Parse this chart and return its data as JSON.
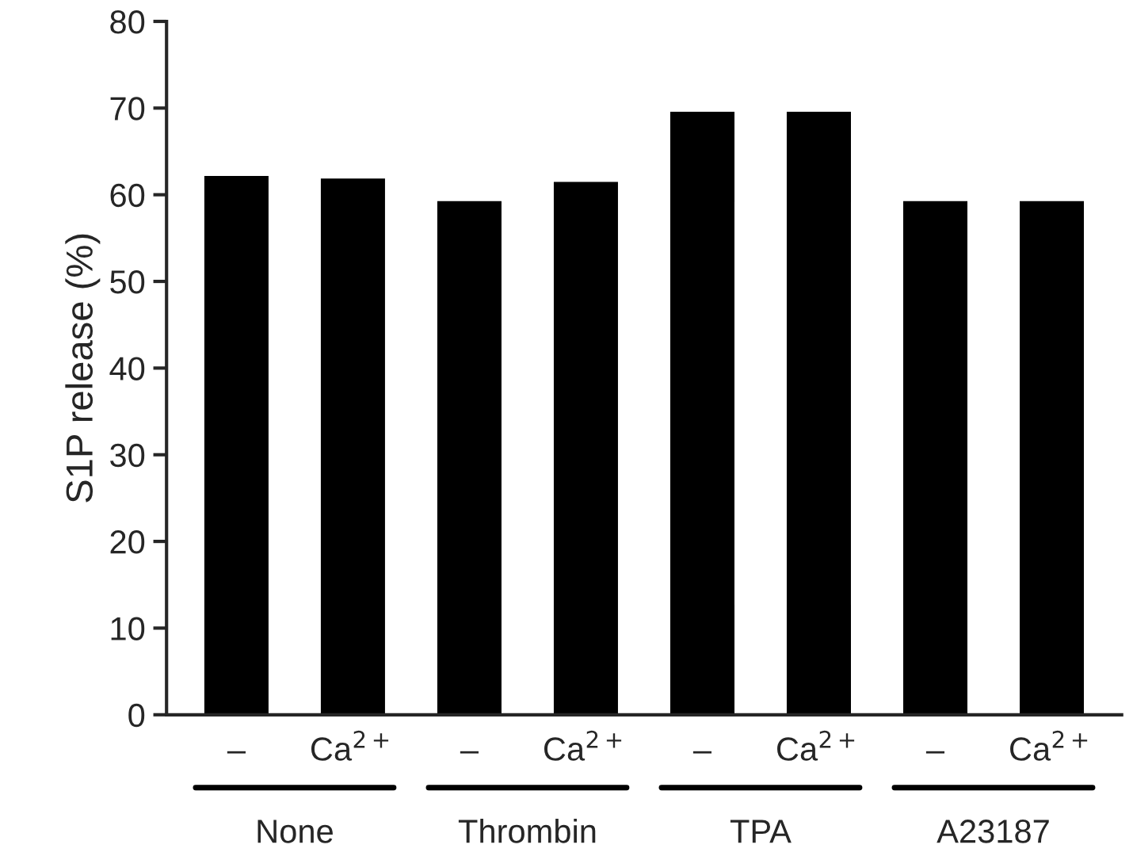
{
  "chart_data": {
    "type": "bar",
    "ylabel": "S1P release (%)",
    "categories": [
      "–",
      "Ca$^{2+}$",
      "–",
      "Ca$^{2+}$",
      "–",
      "Ca$^{2+}$",
      "–",
      "Ca$^{2+}$"
    ],
    "values": [
      62.3,
      62.0,
      59.4,
      61.6,
      69.7,
      69.7,
      59.4,
      59.4
    ],
    "color": "#000000",
    "ylim": [
      0,
      80
    ],
    "yticks": [
      0,
      10,
      20,
      30,
      40,
      50,
      60,
      70,
      80
    ],
    "grid": false,
    "annotations": [
      "None",
      "Thrombin",
      "TPA",
      "A23187"
    ]
  }
}
